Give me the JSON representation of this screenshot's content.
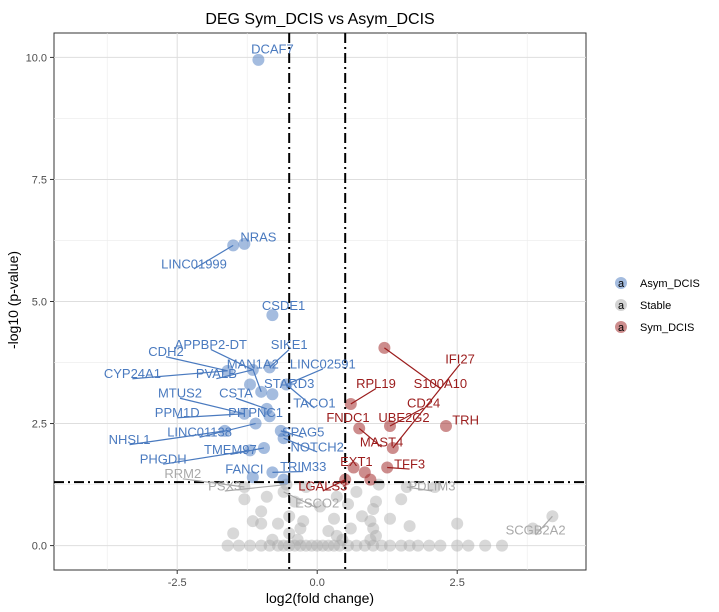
{
  "chart_data": {
    "type": "scatter",
    "title": "DEG Sym_DCIS vs Asym_DCIS",
    "xlabel": "log2(fold change)",
    "ylabel": "-log10 (p-value)",
    "xlim": [
      -4.7,
      4.8
    ],
    "ylim": [
      -0.5,
      10.5
    ],
    "xticks": [
      -2.5,
      0.0,
      2.5
    ],
    "xtick_labels": [
      "-2.5",
      "0.0",
      "2.5"
    ],
    "yticks": [
      0.0,
      2.5,
      5.0,
      7.5,
      10.0
    ],
    "ytick_labels": [
      "0.0",
      "2.5",
      "5.0",
      "7.5",
      "10.0"
    ],
    "vlines": [
      -0.5,
      0.5
    ],
    "hline": 1.3,
    "grid": true,
    "legend_position": "right",
    "colors": {
      "Asym_DCIS": "#4a7abf",
      "Stable": "#a9a9a9",
      "Sym_DCIS": "#9b1c1c"
    },
    "legend": [
      {
        "key": "Asym_DCIS",
        "glyph": "a",
        "label": "Asym_DCIS"
      },
      {
        "key": "Stable",
        "glyph": "a",
        "label": "Stable"
      },
      {
        "key": "Sym_DCIS",
        "glyph": "a",
        "label": "Sym_DCIS"
      }
    ],
    "series": [
      {
        "name": "Asym_DCIS",
        "points": [
          [
            -1.05,
            9.95
          ],
          [
            -1.5,
            6.15
          ],
          [
            -1.3,
            6.18
          ],
          [
            -0.8,
            4.72
          ],
          [
            -1.6,
            3.58
          ],
          [
            -1.15,
            3.6
          ],
          [
            -0.85,
            3.65
          ],
          [
            -0.55,
            3.3
          ],
          [
            -1.2,
            3.3
          ],
          [
            -1.0,
            3.15
          ],
          [
            -0.8,
            3.1
          ],
          [
            -0.9,
            2.8
          ],
          [
            -1.3,
            2.7
          ],
          [
            -0.85,
            2.65
          ],
          [
            -1.1,
            2.5
          ],
          [
            -0.65,
            2.35
          ],
          [
            -1.65,
            2.35
          ],
          [
            -0.6,
            2.2
          ],
          [
            -0.95,
            2.0
          ],
          [
            -1.2,
            1.95
          ],
          [
            -0.8,
            1.5
          ],
          [
            -1.15,
            1.4
          ],
          [
            -0.6,
            1.35
          ]
        ]
      },
      {
        "name": "Sym_DCIS",
        "points": [
          [
            1.2,
            4.05
          ],
          [
            0.6,
            2.9
          ],
          [
            0.75,
            2.4
          ],
          [
            1.3,
            2.45
          ],
          [
            1.35,
            2.0
          ],
          [
            2.3,
            2.45
          ],
          [
            0.65,
            1.6
          ],
          [
            0.85,
            1.5
          ],
          [
            1.25,
            1.6
          ],
          [
            0.5,
            1.35
          ],
          [
            0.95,
            1.35
          ]
        ]
      }
    ],
    "stable_points": [
      [
        -1.3,
        1.2
      ],
      [
        -0.55,
        1.25
      ],
      [
        -0.6,
        1.1
      ],
      [
        -0.9,
        1.0
      ],
      [
        -0.2,
        1.2
      ],
      [
        0.35,
        1.0
      ],
      [
        1.1,
        1.25
      ],
      [
        0.7,
        1.1
      ],
      [
        1.6,
        1.2
      ],
      [
        2.1,
        1.2
      ],
      [
        -1.3,
        0.95
      ],
      [
        -0.4,
        0.9
      ],
      [
        0.05,
        0.8
      ],
      [
        0.55,
        0.85
      ],
      [
        1.05,
        0.9
      ],
      [
        1.5,
        0.95
      ],
      [
        -1.0,
        0.7
      ],
      [
        -0.5,
        0.6
      ],
      [
        0.3,
        0.55
      ],
      [
        0.8,
        0.6
      ],
      [
        1.3,
        0.55
      ],
      [
        1.0,
        0.75
      ],
      [
        -1.0,
        0.45
      ],
      [
        -0.7,
        0.45
      ],
      [
        -0.3,
        0.35
      ],
      [
        0.2,
        0.3
      ],
      [
        0.6,
        0.35
      ],
      [
        1.0,
        0.35
      ],
      [
        1.65,
        0.4
      ],
      [
        -1.5,
        0.25
      ],
      [
        -0.5,
        0.25
      ],
      [
        0.35,
        0.2
      ],
      [
        1.05,
        0.2
      ],
      [
        -1.15,
        0.5
      ],
      [
        -0.25,
        0.5
      ],
      [
        0.95,
        0.5
      ],
      [
        4.2,
        0.6
      ],
      [
        3.85,
        0.35
      ],
      [
        2.5,
        0.45
      ],
      [
        -1.6,
        0.0
      ],
      [
        -1.4,
        0.0
      ],
      [
        -1.2,
        0.0
      ],
      [
        -1.0,
        0.0
      ],
      [
        -0.85,
        0.0
      ],
      [
        -0.7,
        0.0
      ],
      [
        -0.6,
        0.0
      ],
      [
        -0.5,
        0.0
      ],
      [
        -0.4,
        0.0
      ],
      [
        -0.3,
        0.0
      ],
      [
        -0.2,
        0.0
      ],
      [
        -0.1,
        0.0
      ],
      [
        0.0,
        0.0
      ],
      [
        0.1,
        0.0
      ],
      [
        0.2,
        0.0
      ],
      [
        0.3,
        0.0
      ],
      [
        0.4,
        0.0
      ],
      [
        0.55,
        0.0
      ],
      [
        0.7,
        0.0
      ],
      [
        0.85,
        0.0
      ],
      [
        1.0,
        0.0
      ],
      [
        1.15,
        0.0
      ],
      [
        1.3,
        0.0
      ],
      [
        1.5,
        0.0
      ],
      [
        1.65,
        0.0
      ],
      [
        1.8,
        0.0
      ],
      [
        2.0,
        0.0
      ],
      [
        2.2,
        0.0
      ],
      [
        2.5,
        0.0
      ],
      [
        2.7,
        0.0
      ],
      [
        3.0,
        0.0
      ],
      [
        3.3,
        0.0
      ],
      [
        -0.8,
        0.12
      ],
      [
        -0.35,
        0.12
      ],
      [
        0.45,
        0.12
      ],
      [
        0.95,
        0.12
      ]
    ],
    "labels": [
      {
        "text": "DCAF7",
        "color": "#4a7abf",
        "tx": -0.8,
        "ty": 10.15,
        "px": -1.05,
        "py": 9.95,
        "anchor": "middle"
      },
      {
        "text": "NRAS",
        "color": "#4a7abf",
        "tx": -1.05,
        "ty": 6.3,
        "px": -1.3,
        "py": 6.18,
        "anchor": "middle"
      },
      {
        "text": "LINC01999",
        "color": "#4a7abf",
        "tx": -2.2,
        "ty": 5.75,
        "px": -1.5,
        "py": 6.15,
        "anchor": "middle"
      },
      {
        "text": "CSDE1",
        "color": "#4a7abf",
        "tx": -0.6,
        "ty": 4.9,
        "px": -0.8,
        "py": 4.72,
        "anchor": "middle"
      },
      {
        "text": "APPBP2-DT",
        "color": "#4a7abf",
        "tx": -1.9,
        "ty": 4.1,
        "px": -1.15,
        "py": 3.6,
        "anchor": "middle"
      },
      {
        "text": "SIKE1",
        "color": "#4a7abf",
        "tx": -0.5,
        "ty": 4.1,
        "px": -0.85,
        "py": 3.65,
        "anchor": "middle"
      },
      {
        "text": "CDH2",
        "color": "#4a7abf",
        "tx": -2.7,
        "ty": 3.95,
        "px": -1.6,
        "py": 3.58,
        "anchor": "middle"
      },
      {
        "text": "MAN1A2",
        "color": "#4a7abf",
        "tx": -1.15,
        "ty": 3.7,
        "px": -1.0,
        "py": 3.15,
        "anchor": "middle"
      },
      {
        "text": "LINC02591",
        "color": "#4a7abf",
        "tx": 0.1,
        "ty": 3.7,
        "px": -0.55,
        "py": 3.3,
        "anchor": "middle"
      },
      {
        "text": "CYP24A1",
        "color": "#4a7abf",
        "tx": -3.3,
        "ty": 3.5,
        "px": -1.6,
        "py": 3.58,
        "anchor": "middle"
      },
      {
        "text": "PVALB",
        "color": "#4a7abf",
        "tx": -1.8,
        "ty": 3.5,
        "px": -1.15,
        "py": 3.6,
        "anchor": "middle"
      },
      {
        "text": "STARD3",
        "color": "#4a7abf",
        "tx": -0.5,
        "ty": 3.3,
        "px": -0.8,
        "py": 3.1,
        "anchor": "middle"
      },
      {
        "text": "MTUS2",
        "color": "#4a7abf",
        "tx": -2.45,
        "ty": 3.1,
        "px": -1.3,
        "py": 2.7,
        "anchor": "middle"
      },
      {
        "text": "CSTA",
        "color": "#4a7abf",
        "tx": -1.45,
        "ty": 3.1,
        "px": -0.9,
        "py": 2.8,
        "anchor": "middle"
      },
      {
        "text": "TACO1",
        "color": "#4a7abf",
        "tx": -0.05,
        "ty": 2.9,
        "px": -0.55,
        "py": 3.3,
        "anchor": "middle"
      },
      {
        "text": "PPM1D",
        "color": "#4a7abf",
        "tx": -2.5,
        "ty": 2.7,
        "px": -1.3,
        "py": 2.7,
        "anchor": "middle"
      },
      {
        "text": "PITPNC1",
        "color": "#4a7abf",
        "tx": -1.1,
        "ty": 2.7,
        "px": -0.85,
        "py": 2.65,
        "anchor": "middle"
      },
      {
        "text": "LINC01138",
        "color": "#4a7abf",
        "tx": -2.1,
        "ty": 2.3,
        "px": -1.1,
        "py": 2.5,
        "anchor": "middle"
      },
      {
        "text": "SPAG5",
        "color": "#4a7abf",
        "tx": -0.25,
        "ty": 2.3,
        "px": -0.65,
        "py": 2.35,
        "anchor": "middle"
      },
      {
        "text": "NHSL1",
        "color": "#4a7abf",
        "tx": -3.35,
        "ty": 2.15,
        "px": -1.65,
        "py": 2.35,
        "anchor": "middle"
      },
      {
        "text": "NOTCH2",
        "color": "#4a7abf",
        "tx": 0.0,
        "ty": 2.0,
        "px": -0.6,
        "py": 2.2,
        "anchor": "middle"
      },
      {
        "text": "TMEM97",
        "color": "#4a7abf",
        "tx": -1.55,
        "ty": 1.95,
        "px": -0.95,
        "py": 2.0,
        "anchor": "middle"
      },
      {
        "text": "PHGDH",
        "color": "#4a7abf",
        "tx": -2.75,
        "ty": 1.75,
        "px": -1.2,
        "py": 1.95,
        "anchor": "middle"
      },
      {
        "text": "FANCI",
        "color": "#4a7abf",
        "tx": -1.3,
        "ty": 1.55,
        "px": -1.15,
        "py": 1.4,
        "anchor": "middle"
      },
      {
        "text": "TRIM33",
        "color": "#4a7abf",
        "tx": -0.25,
        "ty": 1.6,
        "px": -0.8,
        "py": 1.5,
        "anchor": "middle"
      },
      {
        "text": "RRM2",
        "color": "#a9a9a9",
        "tx": -2.4,
        "ty": 1.45,
        "px": -1.3,
        "py": 1.2,
        "anchor": "middle"
      },
      {
        "text": "PSX3",
        "color": "#a9a9a9",
        "tx": -1.65,
        "ty": 1.2,
        "px": -0.55,
        "py": 1.25,
        "anchor": "middle"
      },
      {
        "text": "LGALS3",
        "color": "#9b1c1c",
        "tx": 0.1,
        "ty": 1.2,
        "px": 0.5,
        "py": 1.35,
        "anchor": "middle"
      },
      {
        "text": "ESCO2",
        "color": "#a9a9a9",
        "tx": 0.0,
        "ty": 0.85,
        "px": -0.6,
        "py": 1.1,
        "anchor": "middle"
      },
      {
        "text": "PDLIM3",
        "color": "#a9a9a9",
        "tx": 2.05,
        "ty": 1.2,
        "px": 1.6,
        "py": 1.2,
        "anchor": "middle"
      },
      {
        "text": "SCGB2A2",
        "color": "#a9a9a9",
        "tx": 3.9,
        "ty": 0.3,
        "px": 4.2,
        "py": 0.6,
        "anchor": "middle"
      },
      {
        "text": "IFI27",
        "color": "#9b1c1c",
        "tx": 2.55,
        "ty": 3.8,
        "px": 1.35,
        "py": 2.0,
        "anchor": "middle"
      },
      {
        "text": "RPL19",
        "color": "#9b1c1c",
        "tx": 1.05,
        "ty": 3.3,
        "px": 0.6,
        "py": 2.9,
        "anchor": "middle"
      },
      {
        "text": "S100A10",
        "color": "#9b1c1c",
        "tx": 2.2,
        "ty": 3.3,
        "px": 1.2,
        "py": 4.05,
        "anchor": "middle"
      },
      {
        "text": "CD24",
        "color": "#9b1c1c",
        "tx": 1.9,
        "ty": 2.9,
        "px": 1.3,
        "py": 2.45,
        "anchor": "middle"
      },
      {
        "text": "FNDC1",
        "color": "#9b1c1c",
        "tx": 0.55,
        "ty": 2.6,
        "px": 0.75,
        "py": 2.4,
        "anchor": "middle"
      },
      {
        "text": "UBE2G2",
        "color": "#9b1c1c",
        "tx": 1.55,
        "ty": 2.6,
        "px": 1.3,
        "py": 2.45,
        "anchor": "middle"
      },
      {
        "text": "TRH",
        "color": "#9b1c1c",
        "tx": 2.65,
        "ty": 2.55,
        "px": 2.3,
        "py": 2.45,
        "anchor": "middle"
      },
      {
        "text": "MAST4",
        "color": "#9b1c1c",
        "tx": 1.15,
        "ty": 2.1,
        "px": 0.75,
        "py": 2.4,
        "anchor": "middle"
      },
      {
        "text": "EXT1",
        "color": "#9b1c1c",
        "tx": 0.7,
        "ty": 1.7,
        "px": 0.85,
        "py": 1.5,
        "anchor": "middle"
      },
      {
        "text": "TFF3",
        "color": "#9b1c1c",
        "tx": 1.65,
        "ty": 1.65,
        "px": 1.25,
        "py": 1.6,
        "anchor": "middle"
      }
    ]
  }
}
